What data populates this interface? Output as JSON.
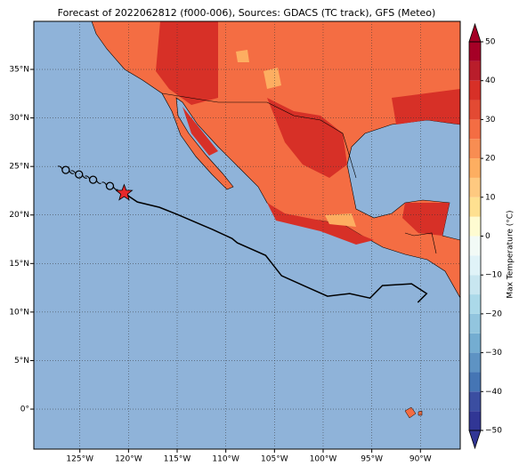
{
  "header": {
    "title": "Forecast of 2022062812 (f000-006), Sources: GDACS (TC track), GFS (Meteo)"
  },
  "map": {
    "lonlim": [
      -129.73,
      -85.91
    ],
    "latlim": [
      -4.12,
      39.95
    ],
    "grid": true,
    "ocean_color": "#8fb3d9",
    "lonticks": [
      {
        "value": -125,
        "label": "125°W"
      },
      {
        "value": -120,
        "label": "120°W"
      },
      {
        "value": -115,
        "label": "115°W"
      },
      {
        "value": -110,
        "label": "110°W"
      },
      {
        "value": -105,
        "label": "105°W"
      },
      {
        "value": -100,
        "label": "100°W"
      },
      {
        "value": -95,
        "label": "95°W"
      },
      {
        "value": -90,
        "label": "90°W"
      }
    ],
    "latticks": [
      {
        "value": 0,
        "label": "0°"
      },
      {
        "value": 5,
        "label": "5°N"
      },
      {
        "value": 10,
        "label": "10°N"
      },
      {
        "value": 15,
        "label": "15°N"
      },
      {
        "value": 20,
        "label": "20°N"
      },
      {
        "value": 25,
        "label": "25°N"
      },
      {
        "value": 30,
        "label": "30°N"
      },
      {
        "value": 35,
        "label": "35°N"
      }
    ]
  },
  "track": {
    "color": "#000000",
    "lon": [
      -120.45,
      -119.09,
      -116.82,
      -115.0,
      -111.36,
      -109.36,
      -108.82,
      -105.91,
      -104.27,
      -101.82,
      -99.55,
      -97.27,
      -95.18,
      -93.91,
      -90.91,
      -89.36,
      -90.27
    ],
    "lat": [
      22.26,
      21.34,
      20.79,
      20.06,
      18.5,
      17.58,
      17.13,
      15.84,
      13.74,
      12.64,
      11.63,
      11.9,
      11.44,
      12.73,
      12.91,
      11.9,
      10.99
    ]
  },
  "past_positions": {
    "lon": [
      -126.45,
      -125.09,
      -123.64,
      -121.91
    ],
    "lat": [
      24.64,
      24.18,
      23.63,
      22.99
    ]
  },
  "current_position": {
    "lon": -120.45,
    "lat": 22.26,
    "color": "#e8282b"
  },
  "colorbar": {
    "label": "Max Temperature (°C)",
    "levels": [
      -50,
      -45,
      -40,
      -35,
      -30,
      -25,
      -20,
      -15,
      -10,
      -5,
      0,
      5,
      10,
      15,
      20,
      25,
      30,
      35,
      40,
      45,
      50
    ],
    "colors": [
      "#313695",
      "#3b4ea1",
      "#4575b4",
      "#5e93c3",
      "#74add1",
      "#92c5de",
      "#abd9e9",
      "#c8e6f0",
      "#e0f3f8",
      "#f2faf6",
      "#fefbd1",
      "#fee090",
      "#fec980",
      "#fdae61",
      "#f88d52",
      "#f46d43",
      "#e34a33",
      "#d73027",
      "#b91d2b",
      "#a50026"
    ],
    "ticks": [
      {
        "value": -50,
        "label": "−50"
      },
      {
        "value": -40,
        "label": "−40"
      },
      {
        "value": -30,
        "label": "−30"
      },
      {
        "value": -20,
        "label": "−20"
      },
      {
        "value": -10,
        "label": "−10"
      },
      0,
      10,
      20,
      30,
      40,
      50
    ]
  }
}
